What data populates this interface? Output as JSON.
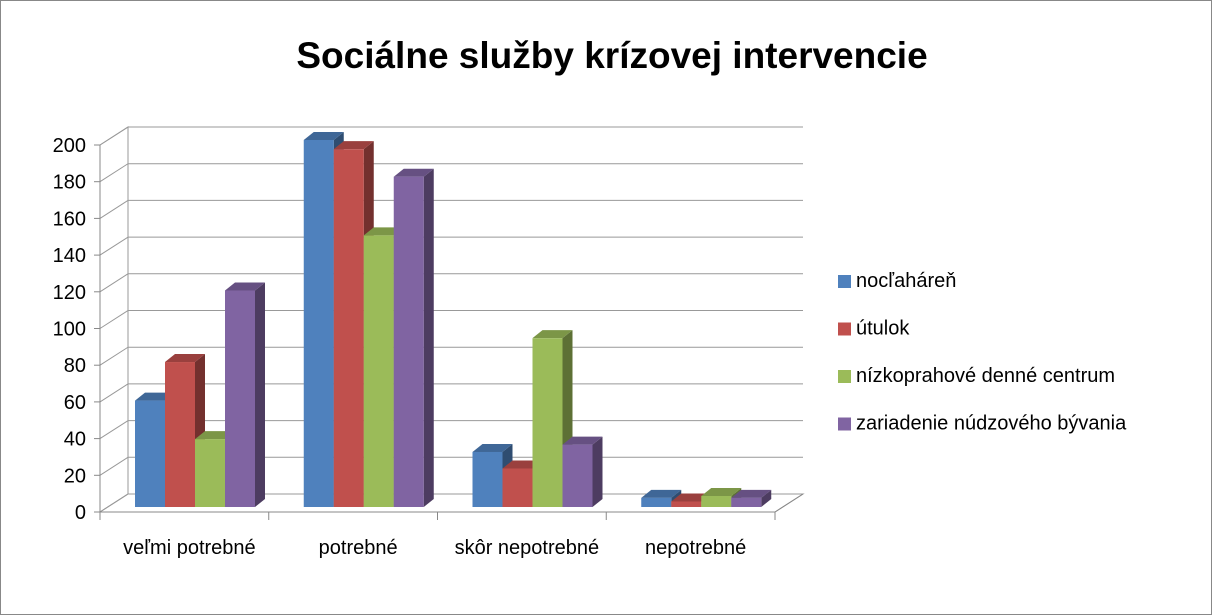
{
  "chart_data": {
    "type": "bar3d",
    "title": "Sociálne služby krízovej intervencie",
    "categories": [
      "veľmi potrebné",
      "potrebné",
      "skôr nepotrebné",
      "nepotrebné"
    ],
    "series": [
      {
        "name": "nocľaháreň",
        "color": "#4f81bd",
        "values": [
          58,
          200,
          30,
          5
        ]
      },
      {
        "name": "útulok",
        "color": "#c0504d",
        "values": [
          79,
          195,
          21,
          3
        ]
      },
      {
        "name": "nízkoprahové denné centrum",
        "color": "#9bbb59",
        "values": [
          37,
          148,
          92,
          6
        ]
      },
      {
        "name": "zariadenie núdzového bývania",
        "color": "#8064a2",
        "values": [
          118,
          180,
          34,
          5
        ]
      }
    ],
    "ylim": [
      0,
      200
    ],
    "yticks": [
      0,
      20,
      40,
      60,
      80,
      100,
      120,
      140,
      160,
      180,
      200
    ],
    "grid": true,
    "legend": "right"
  }
}
